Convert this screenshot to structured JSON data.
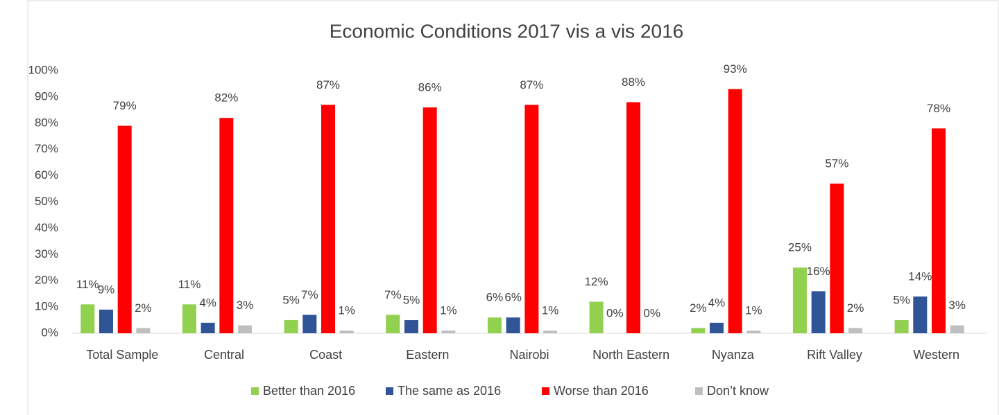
{
  "chart_data": {
    "type": "bar",
    "title": "Economic Conditions 2017 vis a vis 2016",
    "categories": [
      "Total Sample",
      "Central",
      "Coast",
      "Eastern",
      "Nairobi",
      "North Eastern",
      "Nyanza",
      "Rift Valley",
      "Western"
    ],
    "series": [
      {
        "name": "Better than 2016",
        "color": "#92d050",
        "values": [
          11,
          11,
          5,
          7,
          6,
          12,
          2,
          25,
          5
        ],
        "value_labels": [
          "11%",
          "11%",
          "5%",
          "7%",
          "6%",
          "12%",
          "2%",
          "25%",
          "5%"
        ]
      },
      {
        "name": "The same as 2016",
        "color": "#2f5597",
        "values": [
          9,
          4,
          7,
          5,
          6,
          0,
          4,
          16,
          14
        ],
        "value_labels": [
          "9%",
          "4%",
          "7%",
          "5%",
          "6%",
          "0%",
          "4%",
          "16%",
          "14%"
        ]
      },
      {
        "name": "Worse than 2016",
        "color": "#ff0000",
        "values": [
          79,
          82,
          87,
          86,
          87,
          88,
          93,
          57,
          78
        ],
        "value_labels": [
          "79%",
          "82%",
          "87%",
          "86%",
          "87%",
          "88%",
          "93%",
          "57%",
          "78%"
        ]
      },
      {
        "name": "Don’t know",
        "color": "#bfbfbf",
        "values": [
          2,
          3,
          1,
          1,
          1,
          0,
          1,
          2,
          3
        ],
        "value_labels": [
          "2%",
          "3%",
          "1%",
          "1%",
          "1%",
          "0%",
          "1%",
          "2%",
          "3%"
        ]
      }
    ],
    "ylim": [
      0,
      100
    ],
    "yticks": [
      {
        "value": 0,
        "label": "0%"
      },
      {
        "value": 10,
        "label": "10%"
      },
      {
        "value": 20,
        "label": "20%"
      },
      {
        "value": 30,
        "label": "30%"
      },
      {
        "value": 40,
        "label": "40%"
      },
      {
        "value": 50,
        "label": "50%"
      },
      {
        "value": 60,
        "label": "60%"
      },
      {
        "value": 70,
        "label": "70%"
      },
      {
        "value": 80,
        "label": "80%"
      },
      {
        "value": 90,
        "label": "90%"
      },
      {
        "value": 100,
        "label": "100%"
      }
    ],
    "grid": false,
    "legend": "bottom"
  }
}
